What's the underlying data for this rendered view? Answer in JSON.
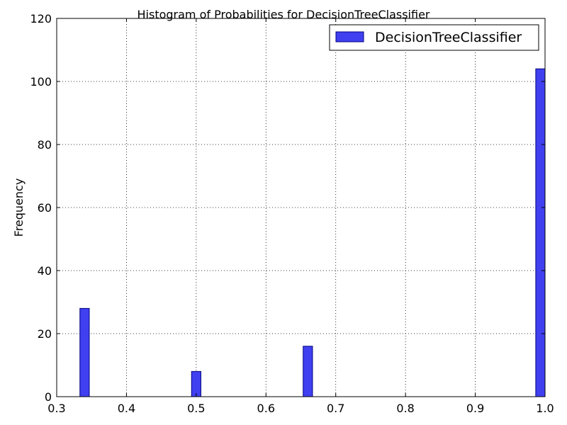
{
  "chart_data": {
    "type": "bar",
    "title": "Histogram of Probabilities for DecisionTreeClassifier",
    "xlabel": "",
    "ylabel": "Frequency",
    "xlim": [
      0.3,
      1.0
    ],
    "ylim": [
      0,
      120
    ],
    "xticks": [
      "0.3",
      "0.4",
      "0.5",
      "0.6",
      "0.7",
      "0.8",
      "0.9",
      "1.0"
    ],
    "yticks": [
      "0",
      "20",
      "40",
      "60",
      "80",
      "100",
      "120"
    ],
    "grid": true,
    "legend_position": "top-right",
    "series": [
      {
        "name": "DecisionTreeClassifier",
        "color": "#4040f0",
        "edge_color": "#000080",
        "bins": [
          {
            "start": 0.3333,
            "end": 0.3467,
            "value": 28
          },
          {
            "start": 0.4933,
            "end": 0.5067,
            "value": 8
          },
          {
            "start": 0.6533,
            "end": 0.6667,
            "value": 16
          },
          {
            "start": 0.9867,
            "end": 1.0,
            "value": 104
          }
        ]
      }
    ]
  }
}
